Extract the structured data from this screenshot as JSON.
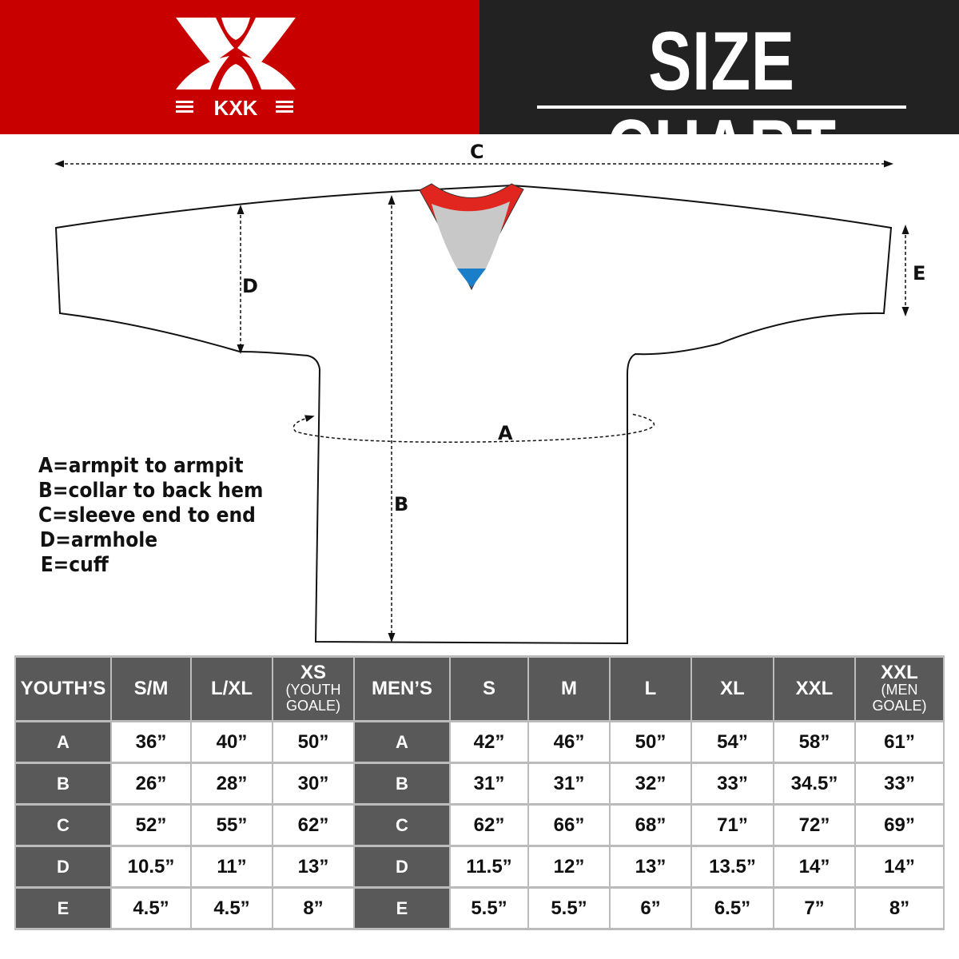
{
  "brand": {
    "name": "KXK",
    "color": "#c80000"
  },
  "header": {
    "title": "SIZE CHART"
  },
  "diagram": {
    "labels": {
      "A": "A",
      "B": "B",
      "C": "C",
      "D": "D",
      "E": "E"
    },
    "colors": {
      "collar_trim": "#e0261e",
      "collar_inner": "#c8c8c8",
      "collar_tip": "#1a7ec8"
    }
  },
  "legend": [
    "A=armpit to armpit",
    "B=collar to back hem",
    "C=sleeve end to end",
    "D=armhole",
    "E=cuff"
  ],
  "table": {
    "headers": [
      {
        "main": "YOUTH’S"
      },
      {
        "main": "S/M"
      },
      {
        "main": "L/XL"
      },
      {
        "main": "XS",
        "sub": "(YOUTH GOALE)"
      },
      {
        "main": "MEN’S"
      },
      {
        "main": "S"
      },
      {
        "main": "M"
      },
      {
        "main": "L"
      },
      {
        "main": "XL"
      },
      {
        "main": "XXL"
      },
      {
        "main": "XXL",
        "sub": "(MEN GOALE)"
      }
    ],
    "rows": [
      {
        "label": "A",
        "youth": [
          "36”",
          "40”",
          "50”"
        ],
        "men": [
          "42”",
          "46”",
          "50”",
          "54”",
          "58”",
          "61”"
        ]
      },
      {
        "label": "B",
        "youth": [
          "26”",
          "28”",
          "30”"
        ],
        "men": [
          "31”",
          "31”",
          "32”",
          "33”",
          "34.5”",
          "33”"
        ]
      },
      {
        "label": "C",
        "youth": [
          "52”",
          "55”",
          "62”"
        ],
        "men": [
          "62”",
          "66”",
          "68”",
          "71”",
          "72”",
          "69”"
        ]
      },
      {
        "label": "D",
        "youth": [
          "10.5”",
          "11”",
          "13”"
        ],
        "men": [
          "11.5”",
          "12”",
          "13”",
          "13.5”",
          "14”",
          "14”"
        ]
      },
      {
        "label": "E",
        "youth": [
          "4.5”",
          "4.5”",
          "8”"
        ],
        "men": [
          "5.5”",
          "5.5”",
          "6”",
          "6.5”",
          "7”",
          "8”"
        ]
      }
    ]
  }
}
